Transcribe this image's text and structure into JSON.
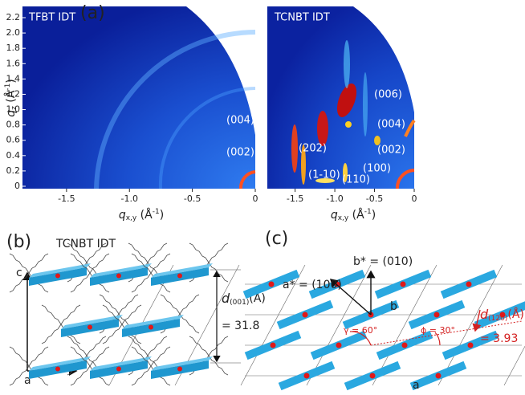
{
  "panel_a": {
    "label": "(a)",
    "left_title": "TFBT IDT",
    "right_title": "TCNBT IDT",
    "y_axis": {
      "var": "q",
      "sub": "z",
      "unit": " (Å",
      "sup": "-1",
      "close": ")"
    },
    "x_axis": {
      "var": "q",
      "sub": "x,y",
      "unit": " (Å",
      "sup": "-1",
      "close": ")"
    },
    "ylim": [
      0,
      2.2
    ],
    "yticks": [
      0,
      0.2,
      0.4,
      0.6,
      0.8,
      {
        "value": 1,
        "label": "1.0"
      },
      1.2,
      1.4,
      1.6,
      1.8,
      {
        "value": 2,
        "label": "2.0"
      },
      2.2
    ],
    "xlim": [
      -1.85,
      0
    ],
    "xticks": [
      -1.5,
      {
        "value": -1,
        "label": "-1.0"
      },
      -0.5,
      0
    ],
    "left_peaks": [
      "(004)",
      "(002)"
    ],
    "right_peaks": [
      "(006)",
      "(004)",
      "(202)",
      "(002)",
      "(100)",
      "(1-10)",
      "(110)"
    ]
  },
  "panel_b": {
    "label": "(b)",
    "title": "TCNBT IDT",
    "axis_c": "c",
    "axis_a": "a",
    "spacing": {
      "var": "d",
      "sub": "(001)",
      "unit": "(Å)",
      "value_text": "= 31.8"
    }
  },
  "panel_c": {
    "label": "(c)",
    "b_star": "b* = (010)",
    "a_star": "a* = (100)",
    "axis_b": "b",
    "axis_a": "a",
    "gamma": "γ = 60°",
    "phi": "ϕ = 30°",
    "spacing": {
      "var": "d",
      "sub": "(120)",
      "unit": "(Å)",
      "value_text": "= 3.93"
    }
  }
}
